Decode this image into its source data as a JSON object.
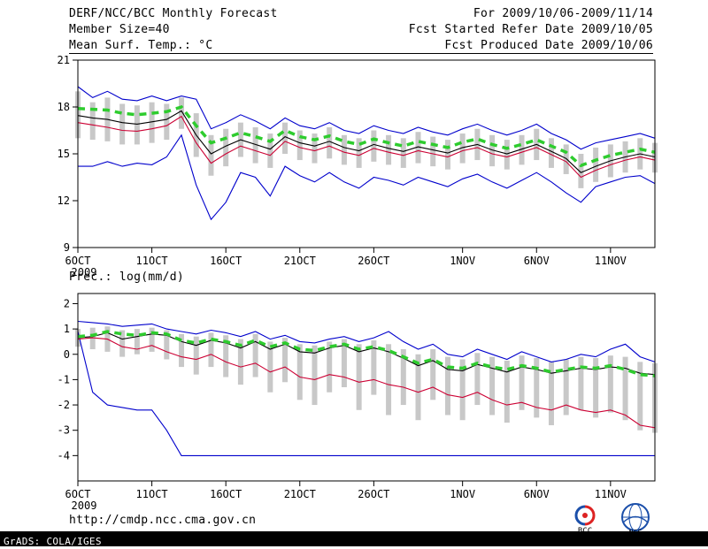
{
  "header": {
    "title": "DERF/NCC/BCC Monthly Forecast",
    "member_size": "Member Size=40",
    "date_range": "For 2009/10/06-2009/11/14",
    "refer_date": "Fcst Started Refer Date 2009/10/05",
    "produced_date": "Fcst Produced Date 2009/10/06"
  },
  "footer": {
    "url": "http://cmdp.ncc.cma.gov.cn",
    "grads_credit": "GrADS: COLA/IGES",
    "bcc_logo_label": "BCC",
    "ncc_logo_label": "NCC"
  },
  "colors": {
    "ensemble_spread_bar": "#c8c8c8",
    "minmax_line": "#0000cc",
    "mean_line": "#000000",
    "control_line": "#cc0033",
    "highlight_line": "#2ecc2e"
  },
  "chart_data": [
    {
      "type": "line",
      "title": "Mean Surf. Temp.: °C",
      "xlabel": "",
      "ylabel": "°C",
      "ylim": [
        9,
        21
      ],
      "yticks": [
        9,
        12,
        15,
        18,
        21
      ],
      "n_days": 40,
      "x_tick_idx": [
        0,
        5,
        10,
        15,
        20,
        26,
        31,
        36
      ],
      "x_tick_labels": [
        "6OCT",
        "11OCT",
        "16OCT",
        "21OCT",
        "26OCT",
        "1NOV",
        "6NOV",
        "11NOV"
      ],
      "x_year_label": "2009",
      "grid": false,
      "bars": {
        "name": "ensemble-spread",
        "color": "#c8c8c8",
        "high": [
          19.0,
          18.3,
          18.6,
          18.2,
          18.1,
          18.3,
          18.2,
          18.6,
          17.6,
          16.2,
          16.6,
          17.0,
          16.7,
          16.3,
          17.0,
          16.5,
          16.3,
          16.7,
          16.2,
          16.0,
          16.5,
          16.2,
          16.0,
          16.4,
          16.1,
          15.9,
          16.3,
          16.6,
          16.2,
          15.9,
          16.2,
          16.6,
          16.0,
          15.6,
          15.0,
          15.4,
          15.6,
          15.8,
          16.0,
          15.7
        ],
        "low": [
          16.0,
          15.9,
          15.8,
          15.6,
          15.6,
          15.7,
          15.9,
          16.6,
          14.8,
          13.6,
          14.2,
          14.8,
          14.4,
          14.1,
          15.0,
          14.6,
          14.4,
          14.7,
          14.3,
          14.1,
          14.5,
          14.3,
          14.1,
          14.4,
          14.2,
          14.0,
          14.4,
          14.6,
          14.2,
          14.0,
          14.3,
          14.6,
          14.1,
          13.7,
          12.8,
          13.2,
          13.5,
          13.8,
          14.0,
          13.8
        ]
      },
      "series": [
        {
          "name": "ensemble-min",
          "color": "#0000cc",
          "width": 1.1,
          "values": [
            14.2,
            14.2,
            14.5,
            14.2,
            14.4,
            14.3,
            14.8,
            16.2,
            13.0,
            10.8,
            11.9,
            13.8,
            13.5,
            12.3,
            14.2,
            13.6,
            13.2,
            13.8,
            13.2,
            12.8,
            13.5,
            13.3,
            13.0,
            13.5,
            13.2,
            12.9,
            13.4,
            13.7,
            13.2,
            12.8,
            13.3,
            13.8,
            13.2,
            12.5,
            11.9,
            12.9,
            13.2,
            13.5,
            13.6,
            13.1
          ]
        },
        {
          "name": "ensemble-max",
          "color": "#0000cc",
          "width": 1.1,
          "values": [
            19.3,
            18.6,
            19.0,
            18.5,
            18.4,
            18.7,
            18.4,
            18.7,
            18.5,
            16.6,
            17.0,
            17.5,
            17.1,
            16.6,
            17.3,
            16.8,
            16.6,
            17.0,
            16.5,
            16.3,
            16.8,
            16.5,
            16.3,
            16.7,
            16.4,
            16.2,
            16.6,
            16.9,
            16.5,
            16.2,
            16.5,
            16.9,
            16.3,
            15.9,
            15.3,
            15.7,
            15.9,
            16.1,
            16.3,
            16.0
          ]
        },
        {
          "name": "control-run",
          "color": "#cc0033",
          "width": 1.1,
          "values": [
            17.0,
            16.85,
            16.7,
            16.5,
            16.45,
            16.6,
            16.8,
            17.4,
            15.7,
            14.4,
            15.0,
            15.5,
            15.2,
            14.9,
            15.8,
            15.4,
            15.2,
            15.5,
            15.1,
            14.9,
            15.35,
            15.1,
            14.9,
            15.2,
            15.0,
            14.8,
            15.2,
            15.4,
            15.0,
            14.8,
            15.1,
            15.4,
            14.95,
            14.5,
            13.5,
            13.95,
            14.3,
            14.6,
            14.8,
            14.6
          ]
        },
        {
          "name": "ensemble-mean",
          "color": "#000000",
          "width": 1.1,
          "values": [
            17.45,
            17.3,
            17.2,
            17.0,
            16.9,
            17.05,
            17.2,
            17.75,
            16.2,
            15.0,
            15.5,
            15.9,
            15.6,
            15.3,
            16.1,
            15.7,
            15.5,
            15.8,
            15.4,
            15.2,
            15.6,
            15.35,
            15.15,
            15.45,
            15.25,
            15.05,
            15.4,
            15.6,
            15.25,
            15.0,
            15.3,
            15.6,
            15.15,
            14.7,
            13.8,
            14.2,
            14.55,
            14.8,
            15.0,
            14.8
          ]
        },
        {
          "name": "ensemble-median-highlight",
          "color": "#2ecc2e",
          "width": 3.5,
          "dash": "8,6",
          "values": [
            17.9,
            17.85,
            17.8,
            17.6,
            17.5,
            17.6,
            17.7,
            18.0,
            16.8,
            15.7,
            16.0,
            16.35,
            16.1,
            15.8,
            16.5,
            16.1,
            15.9,
            16.15,
            15.8,
            15.6,
            15.95,
            15.7,
            15.5,
            15.8,
            15.6,
            15.4,
            15.75,
            15.95,
            15.6,
            15.35,
            15.6,
            15.9,
            15.5,
            15.1,
            14.25,
            14.6,
            14.9,
            15.1,
            15.3,
            15.1
          ]
        }
      ]
    },
    {
      "type": "line",
      "title": "Prec.: log(mm/d)",
      "xlabel": "",
      "ylabel": "log(mm/d)",
      "ylim": [
        -5,
        2.4
      ],
      "yticks": [
        -4,
        -3,
        -2,
        -1,
        0,
        1,
        2
      ],
      "n_days": 40,
      "x_tick_idx": [
        0,
        5,
        10,
        15,
        20,
        26,
        31,
        36
      ],
      "x_tick_labels": [
        "6OCT",
        "11OCT",
        "16OCT",
        "21OCT",
        "26OCT",
        "1NOV",
        "6NOV",
        "11NOV"
      ],
      "x_year_label": "2009",
      "grid": false,
      "bars": {
        "name": "ensemble-spread",
        "color": "#c8c8c8",
        "high": [
          1.0,
          1.05,
          1.1,
          0.95,
          1.0,
          1.05,
          0.95,
          0.8,
          0.7,
          0.85,
          0.75,
          0.6,
          0.8,
          0.5,
          0.65,
          0.4,
          0.35,
          0.5,
          0.6,
          0.4,
          0.55,
          0.4,
          0.2,
          0.0,
          0.2,
          -0.1,
          -0.2,
          0.05,
          -0.1,
          -0.25,
          -0.05,
          -0.15,
          -0.3,
          -0.2,
          -0.1,
          -0.15,
          -0.05,
          -0.1,
          -0.3,
          -0.35
        ],
        "low": [
          0.3,
          0.2,
          0.1,
          -0.1,
          0.0,
          0.1,
          -0.2,
          -0.5,
          -0.8,
          -0.5,
          -0.9,
          -1.2,
          -0.9,
          -1.5,
          -1.1,
          -1.8,
          -2.0,
          -1.5,
          -1.3,
          -2.2,
          -1.6,
          -2.4,
          -2.0,
          -2.6,
          -1.8,
          -2.4,
          -2.6,
          -2.0,
          -2.4,
          -2.7,
          -2.2,
          -2.5,
          -2.8,
          -2.4,
          -2.2,
          -2.5,
          -2.3,
          -2.6,
          -3.0,
          -3.1
        ]
      },
      "series": [
        {
          "name": "ensemble-min",
          "color": "#0000cc",
          "width": 1.1,
          "values": [
            0.9,
            -1.5,
            -2.0,
            -2.1,
            -2.2,
            -2.2,
            -3.0,
            -4.0,
            -4.0,
            -4.0,
            -4.0,
            -4.0,
            -4.0,
            -4.0,
            -4.0,
            -4.0,
            -4.0,
            -4.0,
            -4.0,
            -4.0,
            -4.0,
            -4.0,
            -4.0,
            -4.0,
            -4.0,
            -4.0,
            -4.0,
            -4.0,
            -4.0,
            -4.0,
            -4.0,
            -4.0,
            -4.0,
            -4.0,
            -4.0,
            -4.0,
            -4.0,
            -4.0,
            -4.0,
            -4.0
          ]
        },
        {
          "name": "ensemble-max",
          "color": "#0000cc",
          "width": 1.1,
          "values": [
            1.3,
            1.25,
            1.2,
            1.1,
            1.15,
            1.2,
            1.0,
            0.9,
            0.8,
            0.95,
            0.85,
            0.7,
            0.9,
            0.6,
            0.75,
            0.5,
            0.45,
            0.6,
            0.7,
            0.5,
            0.65,
            0.9,
            0.5,
            0.2,
            0.4,
            0.0,
            -0.1,
            0.2,
            0.0,
            -0.2,
            0.1,
            -0.1,
            -0.3,
            -0.2,
            0.0,
            -0.1,
            0.2,
            0.4,
            -0.1,
            -0.3
          ]
        },
        {
          "name": "control-run",
          "color": "#cc0033",
          "width": 1.1,
          "values": [
            0.6,
            0.65,
            0.6,
            0.3,
            0.2,
            0.35,
            0.1,
            -0.1,
            -0.2,
            0.0,
            -0.3,
            -0.5,
            -0.35,
            -0.7,
            -0.5,
            -0.9,
            -1.0,
            -0.8,
            -0.9,
            -1.1,
            -1.0,
            -1.2,
            -1.3,
            -1.5,
            -1.3,
            -1.6,
            -1.7,
            -1.5,
            -1.8,
            -2.0,
            -1.9,
            -2.1,
            -2.2,
            -2.0,
            -2.2,
            -2.3,
            -2.2,
            -2.4,
            -2.8,
            -2.9
          ]
        },
        {
          "name": "ensemble-mean",
          "color": "#000000",
          "width": 1.1,
          "values": [
            0.65,
            0.7,
            0.85,
            0.6,
            0.7,
            0.8,
            0.75,
            0.5,
            0.35,
            0.55,
            0.45,
            0.25,
            0.5,
            0.2,
            0.4,
            0.1,
            0.05,
            0.25,
            0.35,
            0.1,
            0.25,
            0.1,
            -0.15,
            -0.45,
            -0.25,
            -0.6,
            -0.65,
            -0.4,
            -0.55,
            -0.7,
            -0.5,
            -0.6,
            -0.75,
            -0.65,
            -0.55,
            -0.6,
            -0.5,
            -0.55,
            -0.75,
            -0.8
          ]
        },
        {
          "name": "ensemble-median-highlight",
          "color": "#2ecc2e",
          "width": 3.5,
          "dash": "8,6",
          "values": [
            0.7,
            0.75,
            0.9,
            0.8,
            0.75,
            0.85,
            0.8,
            0.55,
            0.45,
            0.6,
            0.5,
            0.35,
            0.55,
            0.3,
            0.45,
            0.2,
            0.15,
            0.3,
            0.4,
            0.2,
            0.3,
            0.15,
            -0.1,
            -0.35,
            -0.2,
            -0.5,
            -0.55,
            -0.35,
            -0.5,
            -0.6,
            -0.45,
            -0.55,
            -0.7,
            -0.6,
            -0.5,
            -0.55,
            -0.45,
            -0.6,
            -0.8,
            -0.85
          ]
        }
      ]
    }
  ]
}
